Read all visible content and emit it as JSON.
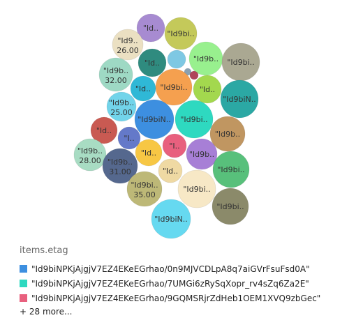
{
  "chart_data": {
    "type": "bubble",
    "legend_title": "items.etag",
    "bubbles": [
      {
        "label": "\"Id..",
        "value": null,
        "color": "#a78bd1"
      },
      {
        "label": "\"Id9bi..",
        "value": null,
        "color": "#c4c95a"
      },
      {
        "label": "\"Id9..",
        "value": 26.0,
        "color": "#ebe0c2"
      },
      {
        "label": "\"Id..",
        "value": null,
        "color": "#2f8b7f"
      },
      {
        "label": "",
        "value": null,
        "color": "#7ec8e3"
      },
      {
        "label": "\"Id9b..",
        "value": null,
        "color": "#98f08e"
      },
      {
        "label": "\"Id9bi..",
        "value": null,
        "color": "#aaa892"
      },
      {
        "label": "\"Id9b..",
        "value": 32.0,
        "color": "#9ed9c4"
      },
      {
        "label": "",
        "value": null,
        "color": "#8aa1b1"
      },
      {
        "label": "",
        "value": null,
        "color": "#b0455a"
      },
      {
        "label": "\"Id..",
        "value": null,
        "color": "#2fb8d6"
      },
      {
        "label": "\"Id9bi..",
        "value": null,
        "color": "#f5a04f"
      },
      {
        "label": "\"Id..",
        "value": null,
        "color": "#a3d84e"
      },
      {
        "label": "\"Id9biN..",
        "value": null,
        "color": "#2ba8a4"
      },
      {
        "label": "\"Id9b..",
        "value": 25.0,
        "color": "#72d4ea"
      },
      {
        "label": "\"Id9biN..",
        "value": null,
        "color": "#3d8fe0"
      },
      {
        "label": "\"Id9bi..",
        "value": null,
        "color": "#2ed9c0"
      },
      {
        "label": "\"Id..",
        "value": null,
        "color": "#c95a52"
      },
      {
        "label": "\"I..",
        "value": null,
        "color": "#6479c9"
      },
      {
        "label": "\"Id9b..",
        "value": null,
        "color": "#c09661"
      },
      {
        "label": "\"Id9b..",
        "value": 28.0,
        "color": "#a8dcc3"
      },
      {
        "label": "\"Id..",
        "value": null,
        "color": "#f7c744"
      },
      {
        "label": "\"I..",
        "value": null,
        "color": "#e8607e"
      },
      {
        "label": "\"Id9b..",
        "value": null,
        "color": "#a77fd6"
      },
      {
        "label": "\"Id9b..",
        "value": 31.0,
        "color": "#55688e"
      },
      {
        "label": "\"Id9bi..",
        "value": null,
        "color": "#58c07b"
      },
      {
        "label": "\"Id..",
        "value": null,
        "color": "#efd9a3"
      },
      {
        "label": "\"Id9bi..",
        "value": 35.0,
        "color": "#bdb877"
      },
      {
        "label": "\"Id9bi..",
        "value": null,
        "color": "#f7e8c6"
      },
      {
        "label": "\"Id9bi..",
        "value": null,
        "color": "#8b8a6a"
      },
      {
        "label": "\"Id9biN..",
        "value": null,
        "color": "#66d9f0"
      }
    ],
    "legend": [
      {
        "label": "\"Id9biNPKjAjgjV7EZ4EKeEGrhao/0n9MJVCDLpA8q7aiGVrFsuFsd0A\"",
        "color": "#3d8fe0"
      },
      {
        "label": "\"Id9biNPKjAjgjV7EZ4EKeEGrhao/7UMGi6zRySqXopr_rv4sZq6Za2E\"",
        "color": "#2ed9c0"
      },
      {
        "label": "\"Id9biNPKjAjgjV7EZ4EKeEGrhao/9GQMSRjrZdHeb1OEM1XVQ9zbGec\"",
        "color": "#e8607e"
      }
    ],
    "more_label": "+ 28 more..."
  }
}
